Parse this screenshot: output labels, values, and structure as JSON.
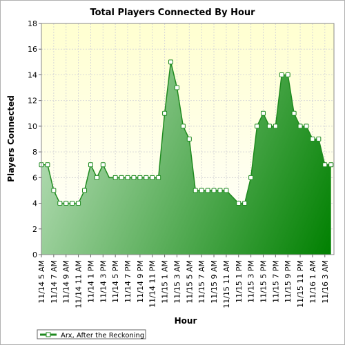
{
  "chart_data": {
    "type": "area",
    "title": "Total Players Connected By Hour",
    "xlabel": "Hour",
    "ylabel": "Players Connected",
    "ylim": [
      0,
      18
    ],
    "yticks": [
      0,
      2,
      4,
      6,
      8,
      10,
      12,
      14,
      16,
      18
    ],
    "grid": true,
    "legend_position": "bottom-left",
    "colors": {
      "plot_bg_top": "#ffffd0",
      "plot_bg_bottom": "#ffffff",
      "area_light": "#b4dcb4",
      "area_dark": "#008000",
      "line": "#1f8a1f",
      "marker_fill": "#ffffff",
      "grid": "#d8d8d8"
    },
    "x": [
      "11/14 5 AM",
      "11/14 6 AM",
      "11/14 7 AM",
      "11/14 8 AM",
      "11/14 9 AM",
      "11/14 10 AM",
      "11/14 11 AM",
      "11/14 12 PM",
      "11/14 1 PM",
      "11/14 2 PM",
      "11/14 3 PM",
      "11/14 4 PM",
      "11/14 5 PM",
      "11/14 6 PM",
      "11/14 7 PM",
      "11/14 8 PM",
      "11/14 9 PM",
      "11/14 10 PM",
      "11/14 11 PM",
      "11/15 12 AM",
      "11/15 1 AM",
      "11/15 2 AM",
      "11/15 3 AM",
      "11/15 4 AM",
      "11/15 5 AM",
      "11/15 6 AM",
      "11/15 7 AM",
      "11/15 8 AM",
      "11/15 9 AM",
      "11/15 10 AM",
      "11/15 11 AM",
      "11/15 12 PM",
      "11/15 1 PM",
      "11/15 2 PM",
      "11/15 3 PM",
      "11/15 4 PM",
      "11/15 5 PM",
      "11/15 6 PM",
      "11/15 7 PM",
      "11/15 8 PM",
      "11/15 9 PM",
      "11/15 10 PM",
      "11/15 11 PM",
      "11/16 12 AM",
      "11/16 1 AM",
      "11/16 2 AM",
      "11/16 3 AM",
      "11/16 4 AM"
    ],
    "xtick_labels": [
      "11/14 5 AM",
      "11/14 7 AM",
      "11/14 9 AM",
      "11/14 11 AM",
      "11/14 1 PM",
      "11/14 3 PM",
      "11/14 5 PM",
      "11/14 7 PM",
      "11/14 9 PM",
      "11/14 11 PM",
      "11/15 1 AM",
      "11/15 3 AM",
      "11/15 5 AM",
      "11/15 7 AM",
      "11/15 9 AM",
      "11/15 11 AM",
      "11/15 1 PM",
      "11/15 3 PM",
      "11/15 5 PM",
      "11/15 7 PM",
      "11/15 9 PM",
      "11/15 11 PM",
      "11/16 1 AM",
      "11/16 3 AM"
    ],
    "series": [
      {
        "name": "Arx, After the Reckoning",
        "values": [
          7,
          7,
          5,
          4,
          4,
          4,
          4,
          5,
          7,
          6,
          7,
          6,
          6,
          6,
          6,
          6,
          6,
          6,
          6,
          6,
          11,
          15,
          13,
          10,
          9,
          5,
          5,
          5,
          5,
          5,
          5,
          4.5,
          4,
          4,
          6,
          10,
          11,
          10,
          10,
          14,
          14,
          11,
          10,
          10,
          9,
          9,
          7,
          7
        ],
        "markers": [
          true,
          true,
          true,
          true,
          true,
          true,
          true,
          true,
          true,
          true,
          true,
          false,
          true,
          true,
          true,
          true,
          true,
          true,
          true,
          true,
          true,
          true,
          true,
          true,
          true,
          true,
          true,
          true,
          true,
          true,
          true,
          false,
          true,
          true,
          true,
          true,
          true,
          true,
          true,
          true,
          true,
          true,
          true,
          true,
          true,
          true,
          true,
          true
        ]
      }
    ]
  }
}
